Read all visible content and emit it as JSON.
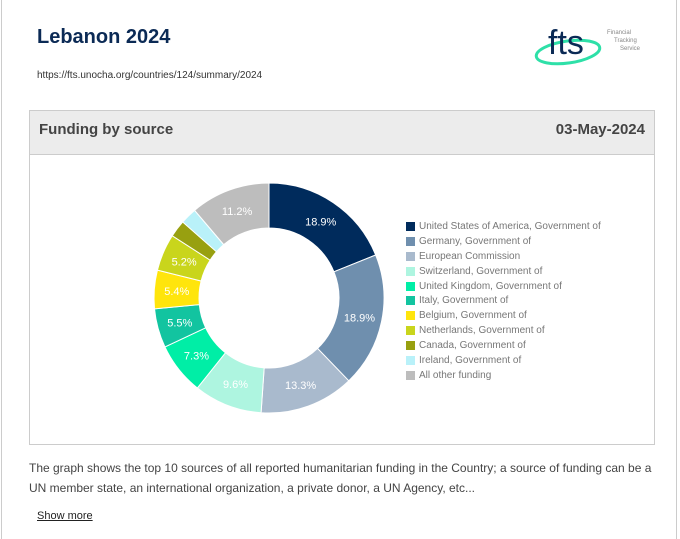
{
  "header": {
    "title": "Lebanon 2024",
    "url": "https://fts.unocha.org/countries/124/summary/2024"
  },
  "logo": {
    "text": "fts",
    "sub": [
      "Financial",
      "Tracking",
      "Service"
    ]
  },
  "section": {
    "title": "Funding by source",
    "date": "03-May-2024"
  },
  "chart_data": {
    "type": "pie",
    "donut": true,
    "legend_placement": "right",
    "categories": [
      "United States of America, Government of",
      "Germany, Government of",
      "European Commission",
      "Switzerland, Government of",
      "United Kingdom, Government of",
      "Italy, Government of",
      "Belgium, Government of",
      "Netherlands, Government of",
      "Canada, Government of",
      "Ireland, Government of",
      "All other funding"
    ],
    "values": [
      18.9,
      18.9,
      13.3,
      9.6,
      7.3,
      5.5,
      5.4,
      5.2,
      2.4,
      2.3,
      11.2
    ],
    "labels": [
      "18.9%",
      "18.9%",
      "13.3%",
      "9.6%",
      "7.3%",
      "5.5%",
      "5.4%",
      "5.2%",
      "",
      "",
      "11.2%"
    ],
    "colors": [
      "#002b5c",
      "#6f8fae",
      "#a9bacd",
      "#aef5e0",
      "#00eea6",
      "#12c4a0",
      "#ffe50c",
      "#c9d51c",
      "#98a010",
      "#b9f1f9",
      "#bdbdbd"
    ]
  },
  "description": "The graph shows the top 10 sources of all reported humanitarian funding in the Country; a source of funding can be a UN member state, an international organization, a private donor, a UN Agency, etc...",
  "show_more": "Show more"
}
